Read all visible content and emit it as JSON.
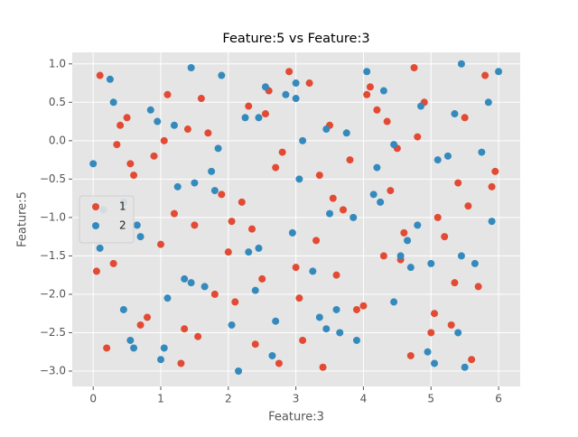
{
  "chart_data": {
    "type": "scatter",
    "title": "Feature:5 vs Feature:3",
    "x_label": "Feature:3",
    "y_label": "Feature:5",
    "xlim": [
      -0.31,
      6.32
    ],
    "ylim": [
      -3.2,
      1.15
    ],
    "xticks": [
      0,
      1,
      2,
      3,
      4,
      5,
      6
    ],
    "yticks": [
      {
        "value": 1.0,
        "label": "1.0"
      },
      {
        "value": 0.5,
        "label": "0.5"
      },
      {
        "value": 0.0,
        "label": "0.0"
      },
      {
        "value": -0.5,
        "label": "−0.5"
      },
      {
        "value": -1.0,
        "label": "−1.0"
      },
      {
        "value": -1.5,
        "label": "−1.5"
      },
      {
        "value": -2.0,
        "label": "−2.0"
      },
      {
        "value": -2.5,
        "label": "−2.5"
      },
      {
        "value": -3.0,
        "label": "−3.0"
      }
    ],
    "grid": true,
    "legend": "center left",
    "series": [
      {
        "name": "1",
        "color": "#E24A33",
        "x": [
          0.1,
          0.3,
          0.5,
          0.7,
          0.9,
          1.1,
          1.3,
          1.5,
          1.7,
          1.9,
          2.1,
          2.3,
          2.5,
          2.7,
          2.9,
          3.1,
          3.3,
          3.5,
          3.7,
          3.9,
          4.1,
          4.3,
          4.5,
          4.7,
          4.9,
          5.1,
          5.3,
          5.5,
          5.7,
          5.9,
          0.2,
          0.6,
          1.0,
          1.4,
          1.8,
          2.2,
          2.6,
          3.0,
          3.4,
          3.8,
          4.2,
          4.6,
          5.0,
          5.4,
          5.8,
          0.4,
          0.8,
          1.2,
          1.6,
          2.0,
          2.4,
          2.8,
          3.2,
          3.6,
          4.0,
          4.4,
          4.8,
          5.2,
          5.6,
          5.95,
          0.05,
          0.55,
          1.05,
          1.55,
          2.05,
          2.55,
          3.05,
          3.55,
          4.05,
          4.55,
          5.05,
          5.55,
          0.35,
          1.35,
          2.35,
          3.35,
          4.35,
          5.35,
          2.75,
          4.75
        ],
        "values": [
          0.85,
          -1.6,
          0.3,
          -2.4,
          -0.2,
          0.6,
          -2.9,
          -1.1,
          0.1,
          -0.7,
          -2.1,
          0.45,
          -1.8,
          -0.35,
          0.9,
          -2.6,
          -1.3,
          0.2,
          -0.9,
          -2.2,
          0.7,
          -1.5,
          -0.1,
          -2.8,
          0.5,
          -1.0,
          -2.4,
          0.3,
          -1.9,
          -0.6,
          -2.7,
          -0.45,
          -1.35,
          0.15,
          -2.0,
          -0.8,
          0.65,
          -1.65,
          -2.95,
          -0.25,
          0.4,
          -1.2,
          -2.5,
          -0.55,
          0.85,
          0.2,
          -2.3,
          -0.95,
          0.55,
          -1.45,
          -2.65,
          -0.15,
          0.75,
          -1.75,
          -2.15,
          -0.65,
          0.05,
          -1.25,
          -2.85,
          -0.4,
          -1.7,
          -0.3,
          0.0,
          -2.55,
          -1.05,
          0.35,
          -2.05,
          -0.75,
          0.6,
          -1.55,
          -2.25,
          -0.85,
          -0.05,
          -2.45,
          -1.15,
          -0.45,
          0.25,
          -1.85,
          -2.9,
          0.95
        ]
      },
      {
        "name": "2",
        "color": "#348ABD",
        "x": [
          0.0,
          0.25,
          0.45,
          0.65,
          0.85,
          1.05,
          1.25,
          1.45,
          1.65,
          1.85,
          2.05,
          2.25,
          2.45,
          2.65,
          2.85,
          3.05,
          3.25,
          3.45,
          3.65,
          3.85,
          4.05,
          4.25,
          4.45,
          4.65,
          4.85,
          5.05,
          5.25,
          5.45,
          5.65,
          5.85,
          0.15,
          0.55,
          0.95,
          1.35,
          1.75,
          2.15,
          2.55,
          2.95,
          3.35,
          3.75,
          4.15,
          4.55,
          4.95,
          5.35,
          5.75,
          0.3,
          0.7,
          1.1,
          1.5,
          1.9,
          2.3,
          2.7,
          3.1,
          3.5,
          3.9,
          4.3,
          4.7,
          5.1,
          5.5,
          5.9,
          0.1,
          0.6,
          1.2,
          1.8,
          2.4,
          3.0,
          3.6,
          4.2,
          4.8,
          5.4,
          6.0,
          0.45,
          1.45,
          2.45,
          3.45,
          4.45,
          5.45,
          1.0,
          3.0,
          5.0
        ],
        "values": [
          -0.3,
          0.8,
          -2.2,
          -1.1,
          0.4,
          -2.7,
          -0.6,
          0.95,
          -1.9,
          -0.1,
          -2.4,
          0.3,
          -1.4,
          -2.8,
          0.6,
          -0.5,
          -1.7,
          0.15,
          -2.5,
          -1.0,
          0.9,
          -0.8,
          -2.1,
          -1.3,
          0.45,
          -2.9,
          -0.2,
          1.0,
          -1.6,
          0.5,
          -0.9,
          -2.6,
          0.25,
          -1.8,
          -0.4,
          -3.0,
          0.7,
          -1.2,
          -2.3,
          0.1,
          -0.7,
          -1.5,
          -2.75,
          0.35,
          -0.15,
          0.5,
          -1.25,
          -2.05,
          -0.55,
          0.85,
          -1.45,
          -2.35,
          0.0,
          -0.95,
          -2.6,
          0.65,
          -1.65,
          -0.25,
          -2.95,
          -1.05,
          -1.4,
          -2.7,
          0.2,
          -0.65,
          -1.95,
          0.55,
          -2.2,
          -0.35,
          -1.1,
          -2.5,
          0.9,
          -0.8,
          -1.85,
          0.3,
          -2.45,
          -0.05,
          -1.5,
          -2.85,
          0.75,
          -1.6
        ]
      }
    ]
  }
}
